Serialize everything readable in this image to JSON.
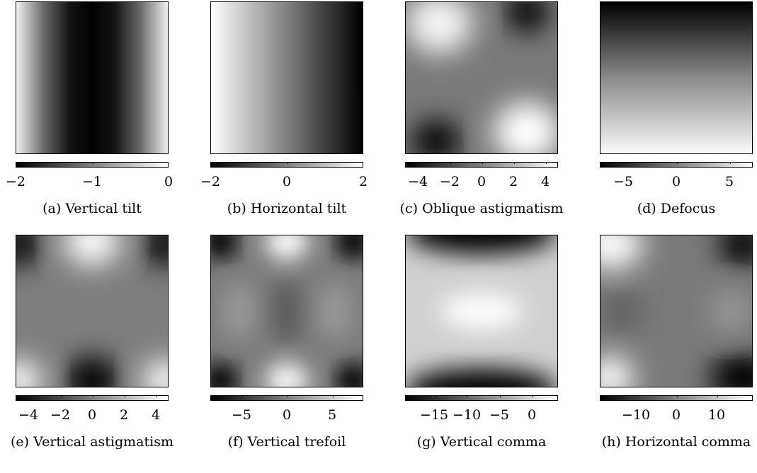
{
  "figure": {
    "colormap": [
      "#000000",
      "#ffffff"
    ],
    "panels": [
      {
        "caption": "(a) Vertical tilt",
        "range": [
          -2,
          0
        ],
        "ticks": [
          "−2",
          "−1",
          "0"
        ],
        "tick_values": [
          -2,
          -1,
          0
        ],
        "pattern": "vertical-tilt"
      },
      {
        "caption": "(b) Horizontal tilt",
        "range": [
          -2,
          2
        ],
        "ticks": [
          "−2",
          "0",
          "2"
        ],
        "tick_values": [
          -2,
          0,
          2
        ],
        "pattern": "horizontal-tilt"
      },
      {
        "caption": "(c) Oblique astigmatism",
        "range": [
          -4.8,
          4.8
        ],
        "ticks": [
          "−4",
          "−2",
          "0",
          "2",
          "4"
        ],
        "tick_values": [
          -4,
          -2,
          0,
          2,
          4
        ],
        "pattern": "oblique-astigmatism"
      },
      {
        "caption": "(d) Defocus",
        "range": [
          -7.2,
          7.2
        ],
        "ticks": [
          "−5",
          "0",
          "5"
        ],
        "tick_values": [
          -5,
          0,
          5
        ],
        "pattern": "defocus"
      },
      {
        "caption": "(e) Vertical astigmatism",
        "range": [
          -4.8,
          4.8
        ],
        "ticks": [
          "−4",
          "−2",
          "0",
          "2",
          "4"
        ],
        "tick_values": [
          -4,
          -2,
          0,
          2,
          4
        ],
        "pattern": "vertical-astigmatism"
      },
      {
        "caption": "(f) Vertical trefoil",
        "range": [
          -8.5,
          8.5
        ],
        "ticks": [
          "−5",
          "0",
          "5"
        ],
        "tick_values": [
          -5,
          0,
          5
        ],
        "pattern": "vertical-trefoil"
      },
      {
        "caption": "(g) Vertical comma",
        "range": [
          -19.5,
          4
        ],
        "ticks": [
          "−15",
          "−10",
          "−5",
          "0"
        ],
        "tick_values": [
          -15,
          -10,
          -5,
          0
        ],
        "pattern": "vertical-comma"
      },
      {
        "caption": "(h) Horizontal comma",
        "range": [
          -19,
          19
        ],
        "ticks": [
          "−10",
          "0",
          "10"
        ],
        "tick_values": [
          -10,
          0,
          10
        ],
        "pattern": "horizontal-comma"
      }
    ]
  }
}
